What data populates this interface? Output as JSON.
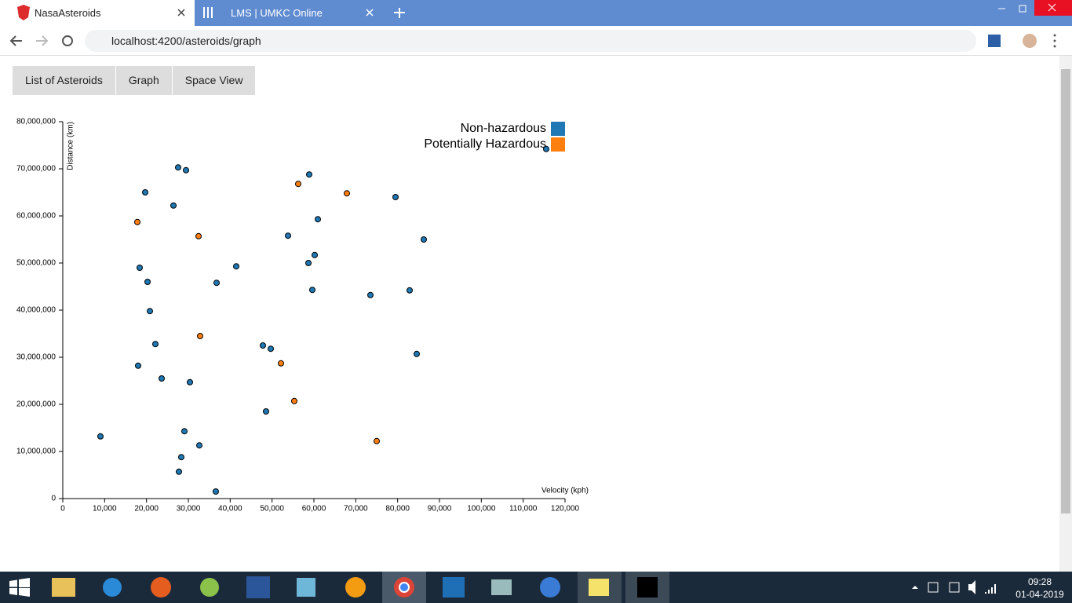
{
  "browser": {
    "tabs": [
      "NasaAsteroids",
      "LMS | UMKC Online"
    ],
    "url": "localhost:4200/asteroids/graph"
  },
  "nav": [
    "List of Asteroids",
    "Graph",
    "Space View"
  ],
  "taskbar": {
    "time": "09:28",
    "date": "01-04-2019"
  },
  "chart_data": {
    "type": "scatter",
    "x_label": "Velocity (kph)",
    "y_label": "Distance (km)",
    "xlim": [
      0,
      120000
    ],
    "xticks": [
      0,
      {
        "value": 10000,
        "label": "10,000"
      },
      {
        "value": 20000,
        "label": "20,000"
      },
      {
        "value": 30000,
        "label": "30,000"
      },
      {
        "value": 40000,
        "label": "40,000"
      },
      {
        "value": 50000,
        "label": "50,000"
      },
      {
        "value": 60000,
        "label": "60,000"
      },
      {
        "value": 70000,
        "label": "70,000"
      },
      {
        "value": 80000,
        "label": "80,000"
      },
      {
        "value": 90000,
        "label": "90,000"
      },
      {
        "value": 100000,
        "label": "100,000"
      },
      {
        "value": 110000,
        "label": "110,000"
      },
      {
        "value": 120000,
        "label": "120,000"
      }
    ],
    "ylim": [
      0,
      80000000
    ],
    "yticks": [
      0,
      {
        "value": 10000000,
        "label": "10,000,000"
      },
      {
        "value": 20000000,
        "label": "20,000,000"
      },
      {
        "value": 30000000,
        "label": "30,000,000"
      },
      {
        "value": 40000000,
        "label": "40,000,000"
      },
      {
        "value": 50000000,
        "label": "50,000,000"
      },
      {
        "value": 60000000,
        "label": "60,000,000"
      },
      {
        "value": 70000000,
        "label": "70,000,000"
      },
      {
        "value": 80000000,
        "label": "80,000,000"
      }
    ],
    "legend": "top-right",
    "series": [
      {
        "name": "Non-hazardous",
        "color": "#1f77b4",
        "x": [
          115500,
          27560,
          29440,
          58875,
          19690,
          79500,
          26440,
          60940,
          53810,
          86250,
          60190,
          41440,
          18375,
          58690,
          20250,
          36750,
          59625,
          73500,
          82875,
          20810,
          22125,
          47810,
          49690,
          84560,
          18000,
          23625,
          30375,
          48560,
          29060,
          9000,
          32625,
          28310,
          27750,
          36560
        ],
        "values": [
          74200000,
          70300000,
          69700000,
          68800000,
          65000000,
          64000000,
          62200000,
          59300000,
          55800000,
          55000000,
          51700000,
          49300000,
          49000000,
          50000000,
          46000000,
          45800000,
          44300000,
          43200000,
          44200000,
          39800000,
          32800000,
          32500000,
          31800000,
          30700000,
          28200000,
          25500000,
          24700000,
          18500000,
          14300000,
          13200000,
          11300000,
          8800000,
          5700000,
          1500000
        ]
      },
      {
        "name": "Potentially Hazardous",
        "color": "#ff7f0e",
        "x": [
          17810,
          56250,
          67875,
          32440,
          32810,
          52125,
          55310,
          75000
        ],
        "values": [
          58700000,
          66800000,
          64800000,
          55700000,
          34500000,
          28700000,
          20700000,
          12200000
        ]
      }
    ]
  }
}
